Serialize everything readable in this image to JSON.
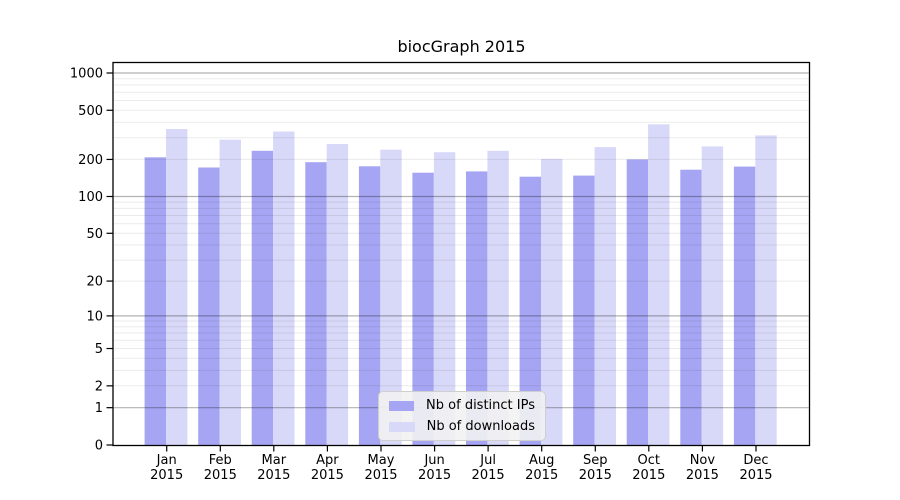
{
  "chart_data": {
    "type": "bar",
    "title": "biocGraph 2015",
    "categories": [
      "Jan 2015",
      "Feb 2015",
      "Mar 2015",
      "Apr 2015",
      "May 2015",
      "Jun 2015",
      "Jul 2015",
      "Aug 2015",
      "Sep 2015",
      "Oct 2015",
      "Nov 2015",
      "Dec 2015"
    ],
    "series": [
      {
        "name": "Nb of distinct IPs",
        "color": "#a5a5f3",
        "values": [
          208,
          172,
          235,
          190,
          176,
          156,
          160,
          145,
          148,
          200,
          165,
          175
        ]
      },
      {
        "name": "Nb of downloads",
        "color": "#d8d8f8",
        "values": [
          353,
          289,
          337,
          267,
          240,
          229,
          235,
          202,
          252,
          385,
          255,
          313
        ]
      }
    ],
    "y_axis": {
      "scale": "log10(value+1)",
      "ticks": [
        0,
        1,
        2,
        5,
        10,
        20,
        50,
        100,
        200,
        500,
        1000
      ],
      "range": [
        0,
        1000
      ],
      "grid_major_at": [
        1,
        10,
        100,
        1000
      ],
      "grid_minor_at": [
        2,
        3,
        4,
        5,
        6,
        7,
        8,
        9,
        20,
        30,
        40,
        50,
        60,
        70,
        80,
        90,
        200,
        300,
        400,
        500,
        600,
        700,
        800,
        900
      ]
    },
    "legend_position": "inside-bottom-center",
    "grid": "horizontal, minor faint + major gray, drawn over bars",
    "frame": true
  }
}
